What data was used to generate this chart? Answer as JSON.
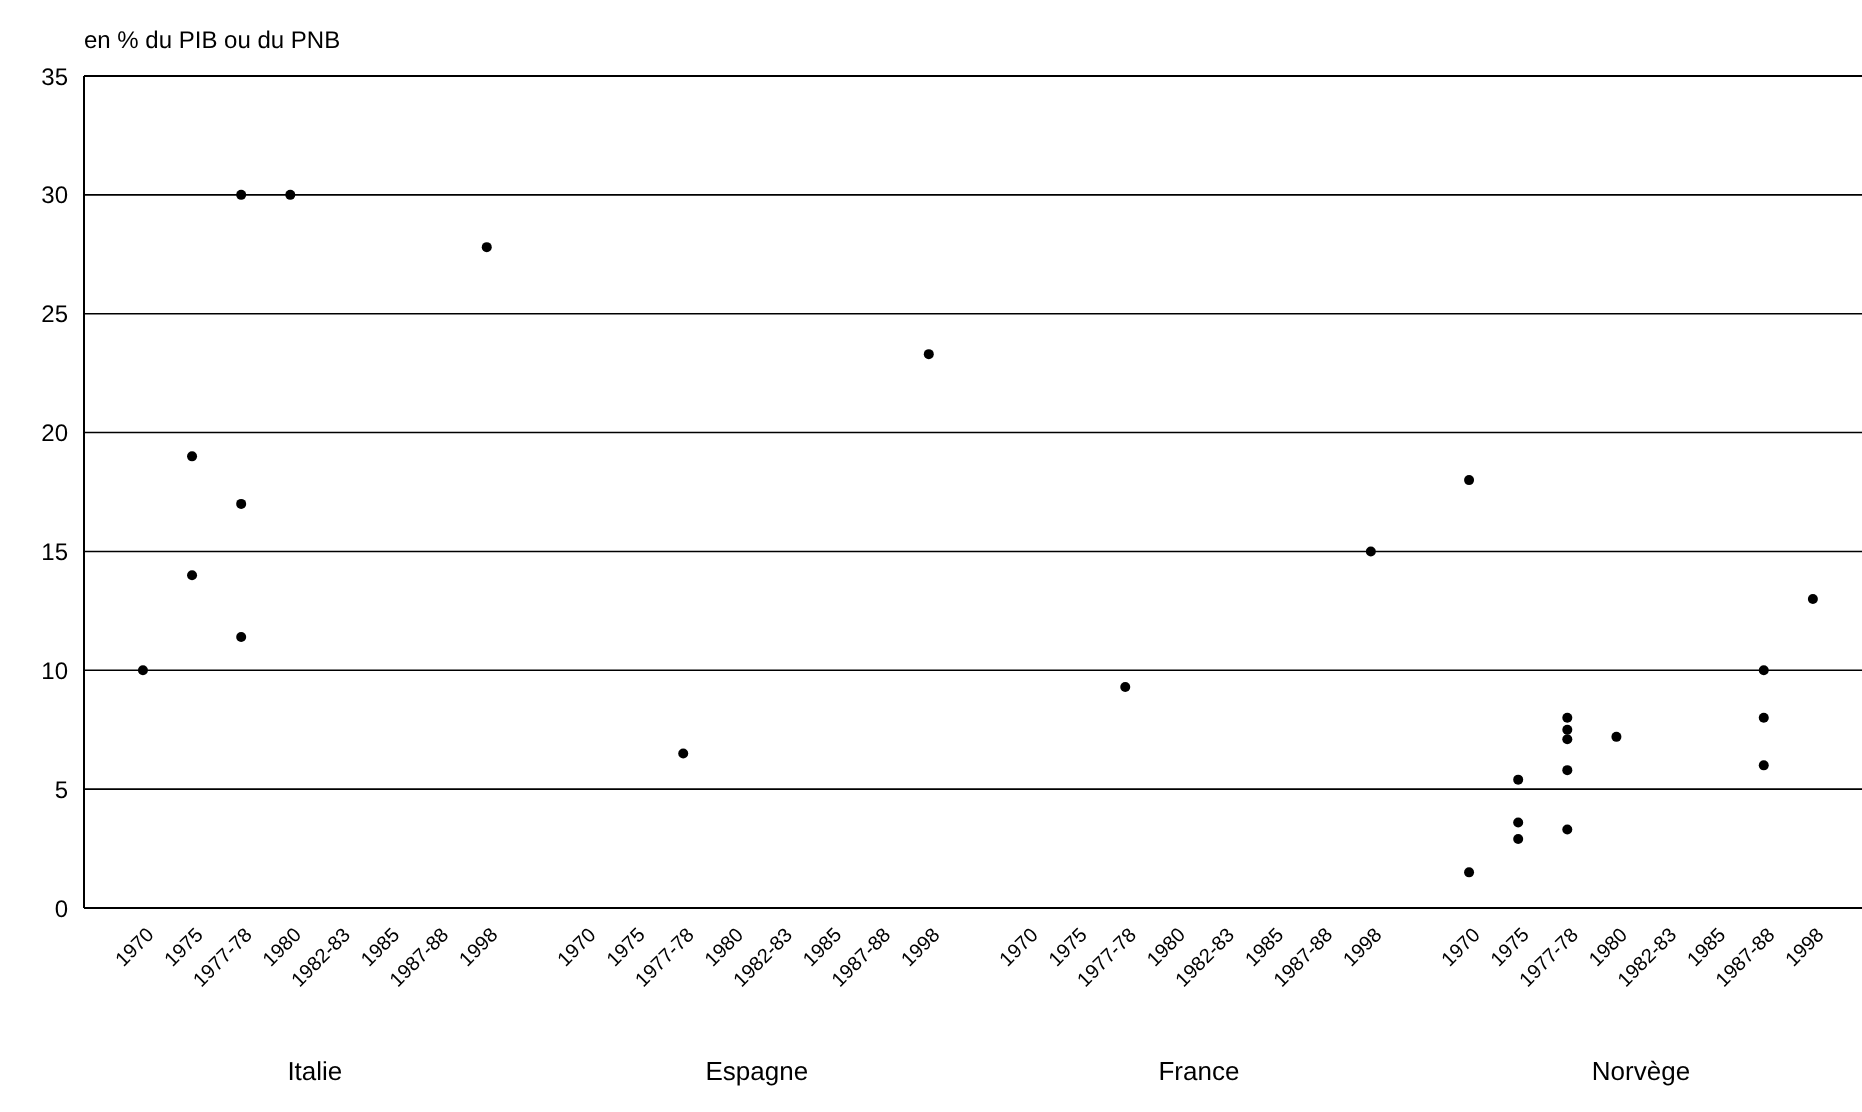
{
  "chart_data": {
    "type": "scatter",
    "ylabel": "en % du PIB ou du PNB",
    "categories": [
      "1970",
      "1975",
      "1977-78",
      "1980",
      "1982-83",
      "1985",
      "1987-88",
      "1998",
      null,
      "1970",
      "1975",
      "1977-78",
      "1980",
      "1982-83",
      "1985",
      "1987-88",
      "1998",
      null,
      "1970",
      "1975",
      "1977-78",
      "1980",
      "1982-83",
      "1985",
      "1987-88",
      "1998",
      null,
      "1970",
      "1975",
      "1977-78",
      "1980",
      "1982-83",
      "1985",
      "1987-88",
      "1998"
    ],
    "annotations": [
      "Italie",
      "Espagne",
      "France",
      "Norvège"
    ],
    "series": [
      {
        "color": "#000000",
        "values": [
          10,
          19,
          30,
          30,
          null,
          null,
          null,
          27.8,
          null,
          null,
          null,
          6.5,
          null,
          null,
          null,
          null,
          23.3,
          null,
          null,
          null,
          9.3,
          null,
          null,
          null,
          null,
          15,
          null,
          18,
          5.4,
          8,
          7.2,
          null,
          null,
          10,
          13
        ]
      },
      {
        "color": "#000000",
        "values": [
          null,
          14,
          17,
          null,
          null,
          null,
          null,
          null,
          null,
          null,
          null,
          null,
          null,
          null,
          null,
          null,
          null,
          null,
          null,
          null,
          null,
          null,
          null,
          null,
          null,
          null,
          null,
          1.5,
          3.6,
          7.5,
          null,
          null,
          null,
          8,
          null
        ]
      },
      {
        "color": "#000000",
        "values": [
          null,
          null,
          11.4,
          null,
          null,
          null,
          null,
          null,
          null,
          null,
          null,
          null,
          null,
          null,
          null,
          null,
          null,
          null,
          null,
          null,
          null,
          null,
          null,
          null,
          null,
          null,
          null,
          null,
          2.9,
          7.1,
          null,
          null,
          null,
          6,
          null
        ]
      },
      {
        "color": "#000000",
        "values": [
          null,
          null,
          null,
          null,
          null,
          null,
          null,
          null,
          null,
          null,
          null,
          null,
          null,
          null,
          null,
          null,
          null,
          null,
          null,
          null,
          null,
          null,
          null,
          null,
          null,
          null,
          null,
          null,
          null,
          5.8,
          null,
          null,
          null,
          null,
          null
        ]
      },
      {
        "color": "#000000",
        "values": [
          null,
          null,
          null,
          null,
          null,
          null,
          null,
          null,
          null,
          null,
          null,
          null,
          null,
          null,
          null,
          null,
          null,
          null,
          null,
          null,
          null,
          null,
          null,
          null,
          null,
          null,
          null,
          null,
          null,
          3.3,
          null,
          null,
          null,
          null,
          null
        ]
      }
    ],
    "ylim": [
      0,
      35
    ],
    "yticks": [
      0,
      5,
      10,
      15,
      20,
      25,
      30,
      35
    ],
    "grid": "y",
    "marker": "circle"
  }
}
